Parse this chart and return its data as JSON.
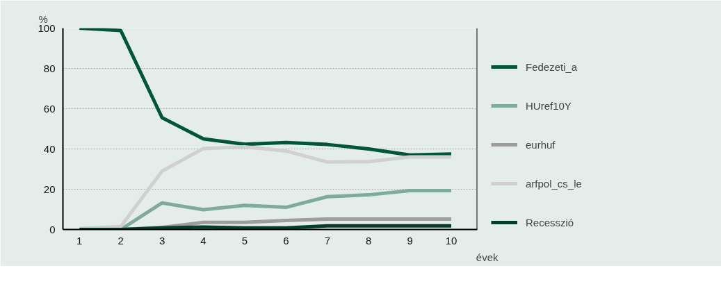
{
  "chart_data": {
    "type": "line",
    "ylabel": "%",
    "xlabel": "évek",
    "x": [
      1,
      2,
      3,
      4,
      5,
      6,
      7,
      8,
      9,
      10
    ],
    "xlim": [
      0.6,
      10.63
    ],
    "xticks": [
      1,
      2,
      3,
      4,
      5,
      6,
      7,
      8,
      9,
      10
    ],
    "ylim": [
      0,
      100
    ],
    "yticks": [
      0,
      20,
      40,
      60,
      80,
      100
    ],
    "grid": "y",
    "legend": "right",
    "line_style": "solid",
    "marker": "none",
    "series": [
      {
        "name": "Fedezeti_a",
        "color": "#00553a",
        "values": [
          100,
          98.8,
          55.5,
          45,
          42.3,
          43.2,
          42.2,
          40,
          37,
          37.5
        ]
      },
      {
        "name": "HUref10Y",
        "color": "#7fab9a",
        "values": [
          0,
          0,
          13.2,
          9.8,
          12,
          11,
          16.3,
          17.2,
          19.3,
          19.3
        ]
      },
      {
        "name": "eurhuf",
        "color": "#9d9d9d",
        "values": [
          0,
          0,
          1,
          3.5,
          3.5,
          4.5,
          5.2,
          5.2,
          5.2,
          5.2
        ]
      },
      {
        "name": "arfpol_cs_le",
        "color": "#d0d0d0",
        "values": [
          0.5,
          1.5,
          29,
          40.2,
          41,
          39,
          33.5,
          33.7,
          36,
          36
        ]
      },
      {
        "name": "Recesszió",
        "color": "#063d28",
        "values": [
          0,
          0,
          0.8,
          1.2,
          0.8,
          0.8,
          1.8,
          1.8,
          1.8,
          1.8
        ]
      }
    ]
  }
}
